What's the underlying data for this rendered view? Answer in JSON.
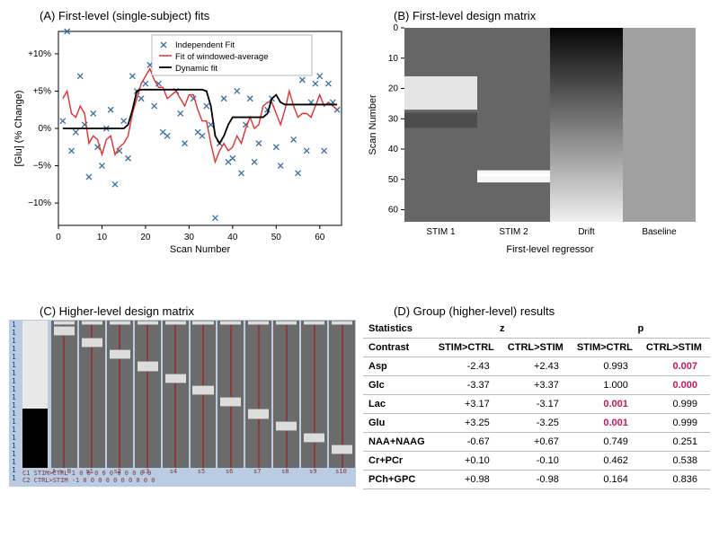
{
  "panelA": {
    "title": "(A)  First-level (single-subject) fits",
    "xlabel": "Scan Number",
    "ylabel": "[Glu] (% Change)",
    "xlim": [
      0,
      65
    ],
    "ylim": [
      -13,
      13
    ],
    "yticks": [
      -10,
      -5,
      0,
      5,
      10
    ],
    "ytick_labels": [
      "−10%",
      "−5%",
      "0%",
      "+5%",
      "+10%"
    ],
    "xticks": [
      0,
      10,
      20,
      30,
      40,
      50,
      60
    ],
    "legend": [
      "Independent Fit",
      "Fit of windowed-average",
      "Dynamic fit"
    ],
    "colors": {
      "scatter": "#3b6fa0",
      "red": "#e03030",
      "black": "#000000",
      "grid": "#b0b0b0",
      "axis": "#000000",
      "bg": "#ffffff"
    },
    "scatter": [
      [
        1,
        1
      ],
      [
        2,
        13
      ],
      [
        3,
        -3
      ],
      [
        4,
        -0.5
      ],
      [
        5,
        7
      ],
      [
        6,
        0.5
      ],
      [
        7,
        -6.5
      ],
      [
        8,
        2
      ],
      [
        9,
        -2.5
      ],
      [
        10,
        -5
      ],
      [
        11,
        0
      ],
      [
        12,
        2.5
      ],
      [
        13,
        -7.5
      ],
      [
        14,
        -3
      ],
      [
        15,
        1
      ],
      [
        16,
        -4
      ],
      [
        17,
        7
      ],
      [
        18,
        5
      ],
      [
        19,
        4
      ],
      [
        20,
        6
      ],
      [
        21,
        8.5
      ],
      [
        22,
        3
      ],
      [
        23,
        6
      ],
      [
        24,
        -0.5
      ],
      [
        25,
        -1
      ],
      [
        26,
        8
      ],
      [
        27,
        5
      ],
      [
        28,
        2
      ],
      [
        29,
        -2
      ],
      [
        30,
        9
      ],
      [
        31,
        4
      ],
      [
        32,
        -0.5
      ],
      [
        33,
        -1
      ],
      [
        34,
        3
      ],
      [
        35,
        0.5
      ],
      [
        36,
        -12
      ],
      [
        37,
        -2
      ],
      [
        38,
        4
      ],
      [
        39,
        -4.5
      ],
      [
        40,
        -4
      ],
      [
        41,
        5
      ],
      [
        42,
        -6
      ],
      [
        43,
        0.5
      ],
      [
        44,
        4
      ],
      [
        45,
        -4.5
      ],
      [
        46,
        -2
      ],
      [
        47,
        9
      ],
      [
        48,
        2.5
      ],
      [
        49,
        4
      ],
      [
        50,
        -2.5
      ],
      [
        51,
        -5
      ],
      [
        52,
        9
      ],
      [
        53,
        8.5
      ],
      [
        54,
        -1.5
      ],
      [
        55,
        -6
      ],
      [
        56,
        6.5
      ],
      [
        57,
        -3
      ],
      [
        58,
        3.5
      ],
      [
        59,
        6
      ],
      [
        60,
        7
      ],
      [
        61,
        -3
      ],
      [
        62,
        6
      ],
      [
        63,
        3.5
      ],
      [
        64,
        2.5
      ]
    ],
    "red_line": [
      [
        1,
        4
      ],
      [
        2,
        5
      ],
      [
        3,
        2
      ],
      [
        4,
        1.5
      ],
      [
        5,
        3
      ],
      [
        6,
        2
      ],
      [
        7,
        -2
      ],
      [
        8,
        -1
      ],
      [
        9,
        -1.5
      ],
      [
        10,
        -3.5
      ],
      [
        11,
        -1.5
      ],
      [
        12,
        -1
      ],
      [
        13,
        -3.5
      ],
      [
        14,
        -2.5
      ],
      [
        15,
        -2
      ],
      [
        16,
        -1
      ],
      [
        17,
        2
      ],
      [
        18,
        4
      ],
      [
        19,
        6
      ],
      [
        20,
        7
      ],
      [
        21,
        8
      ],
      [
        22,
        6.5
      ],
      [
        23,
        5.5
      ],
      [
        24,
        5.5
      ],
      [
        25,
        4
      ],
      [
        26,
        4.5
      ],
      [
        27,
        5
      ],
      [
        28,
        4
      ],
      [
        29,
        3
      ],
      [
        30,
        4.5
      ],
      [
        31,
        4.5
      ],
      [
        32,
        2.5
      ],
      [
        33,
        1
      ],
      [
        34,
        1
      ],
      [
        35,
        -2
      ],
      [
        36,
        -4.5
      ],
      [
        37,
        -3
      ],
      [
        38,
        -2
      ],
      [
        39,
        -3
      ],
      [
        40,
        -2.5
      ],
      [
        41,
        -1
      ],
      [
        42,
        -2
      ],
      [
        43,
        0
      ],
      [
        44,
        1.5
      ],
      [
        45,
        0
      ],
      [
        46,
        0.5
      ],
      [
        47,
        3
      ],
      [
        48,
        3.5
      ],
      [
        49,
        3.5
      ],
      [
        50,
        2
      ],
      [
        51,
        0.5
      ],
      [
        52,
        2.5
      ],
      [
        53,
        5
      ],
      [
        54,
        3
      ],
      [
        55,
        1.5
      ],
      [
        56,
        2
      ],
      [
        57,
        2
      ],
      [
        58,
        1.5
      ],
      [
        59,
        3
      ],
      [
        60,
        4.5
      ],
      [
        61,
        3
      ],
      [
        62,
        3.5
      ],
      [
        63,
        3
      ],
      [
        64,
        2.5
      ]
    ],
    "black_line": [
      [
        1,
        0
      ],
      [
        15,
        0
      ],
      [
        16,
        0.5
      ],
      [
        17,
        2.5
      ],
      [
        18,
        5
      ],
      [
        19,
        5.2
      ],
      [
        33,
        5.2
      ],
      [
        34,
        5
      ],
      [
        35,
        3
      ],
      [
        36,
        -1
      ],
      [
        37,
        -2
      ],
      [
        38,
        -1
      ],
      [
        39,
        0.5
      ],
      [
        40,
        1.5
      ],
      [
        47,
        1.5
      ],
      [
        48,
        2
      ],
      [
        49,
        4
      ],
      [
        50,
        4.5
      ],
      [
        51,
        3.5
      ],
      [
        52,
        3.2
      ],
      [
        64,
        3.2
      ]
    ]
  },
  "panelB": {
    "title": "(B)   First-level design matrix",
    "ylabel": "Scan Number",
    "xlabel": "First-level regressor",
    "xticks": [
      "STIM 1",
      "STIM 2",
      "Drift",
      "Baseline"
    ],
    "yticks": [
      0,
      10,
      20,
      30,
      40,
      50,
      60
    ],
    "colors": {
      "bg": "#666666",
      "light": "#e4e4e4",
      "mid": "#888888",
      "dark": "#1a1a1a"
    },
    "columns": {
      "stim1": {
        "on": [
          [
            16,
            27
          ]
        ],
        "shade": "#e4e4e4",
        "band_dark": [
          [
            28,
            33
          ]
        ]
      },
      "stim2": {
        "on": [
          [
            47,
            51
          ]
        ],
        "shade": "#f6f6f6"
      },
      "drift": {
        "gradient": [
          "#050505",
          "#f0f0f0"
        ]
      },
      "baseline": {
        "flat": "#a0a0a0"
      }
    }
  },
  "panelC": {
    "title": "(C)  Higher-level design matrix",
    "row_labels_count": 20,
    "contrast_labels": [
      "C1  STIM>CTRL   1    0    0    0    0    0    0    0    0    0    0",
      "C2  CTRL>STIM  -1    0    0    0    0    0    0    0    0    0    0"
    ],
    "col_labels": [
      "A > B",
      "s1",
      "s2",
      "s3",
      "s4",
      "s5",
      "s6",
      "s7",
      "s8",
      "s9",
      "s10"
    ],
    "colors": {
      "bg": "#b9cce4",
      "bar": "#6b6b6b",
      "line": "#8b3a3a",
      "block": "#ddd",
      "black": "#000"
    }
  },
  "panelD": {
    "title": "(D)  Group (higher-level) results",
    "header_stats": "Statistics",
    "header_z": "z",
    "header_p": "p",
    "columns": [
      "Contrast",
      "STIM>CTRL",
      "CTRL>STIM",
      "STIM>CTRL",
      "CTRL>STIM"
    ],
    "rows": [
      {
        "name": "Asp",
        "z1": "-2.43",
        "z2": "+2.43",
        "p1": "0.993",
        "p2": "0.007",
        "sig": [
          false,
          false,
          false,
          true
        ]
      },
      {
        "name": "Glc",
        "z1": "-3.37",
        "z2": "+3.37",
        "p1": "1.000",
        "p2": "0.000",
        "sig": [
          false,
          false,
          false,
          true
        ]
      },
      {
        "name": "Lac",
        "z1": "+3.17",
        "z2": "-3.17",
        "p1": "0.001",
        "p2": "0.999",
        "sig": [
          false,
          false,
          true,
          false
        ]
      },
      {
        "name": "Glu",
        "z1": "+3.25",
        "z2": "-3.25",
        "p1": "0.001",
        "p2": "0.999",
        "sig": [
          false,
          false,
          true,
          false
        ]
      },
      {
        "name": "NAA+NAAG",
        "z1": "-0.67",
        "z2": "+0.67",
        "p1": "0.749",
        "p2": "0.251",
        "sig": [
          false,
          false,
          false,
          false
        ]
      },
      {
        "name": "Cr+PCr",
        "z1": "+0.10",
        "z2": "-0.10",
        "p1": "0.462",
        "p2": "0.538",
        "sig": [
          false,
          false,
          false,
          false
        ]
      },
      {
        "name": "PCh+GPC",
        "z1": "+0.98",
        "z2": "-0.98",
        "p1": "0.164",
        "p2": "0.836",
        "sig": [
          false,
          false,
          false,
          false
        ]
      }
    ],
    "sig_color": "#c2185b"
  }
}
